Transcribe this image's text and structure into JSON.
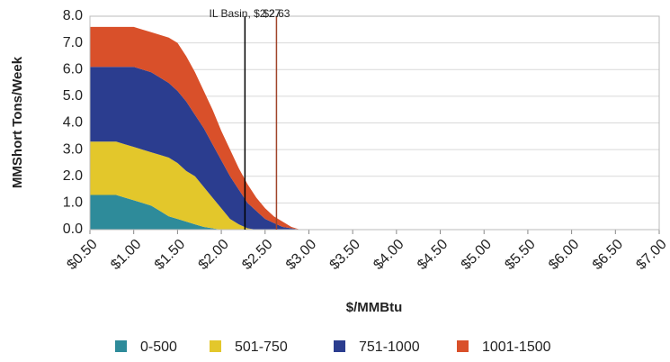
{
  "chart_data": {
    "type": "stacked_area",
    "y_label": "MMShort Tons/Week",
    "x_label": "$/MMBtu",
    "x": [
      0.5,
      0.6,
      0.7,
      0.8,
      0.9,
      1.0,
      1.1,
      1.2,
      1.3,
      1.4,
      1.5,
      1.6,
      1.7,
      1.8,
      1.9,
      2.0,
      2.1,
      2.2,
      2.3,
      2.4,
      2.5,
      2.6,
      2.7,
      2.8,
      2.9
    ],
    "series": [
      {
        "name": "0-500",
        "color": "#2e8b9a",
        "values": [
          1.3,
          1.3,
          1.3,
          1.3,
          1.2,
          1.1,
          1.0,
          0.9,
          0.7,
          0.5,
          0.4,
          0.3,
          0.2,
          0.1,
          0.05,
          0,
          0,
          0,
          0,
          0,
          0,
          0,
          0,
          0,
          0
        ]
      },
      {
        "name": "501-750",
        "color": "#e3c72b",
        "values": [
          2.0,
          2.0,
          2.0,
          2.0,
          2.0,
          2.0,
          2.0,
          2.0,
          2.1,
          2.2,
          2.1,
          1.9,
          1.8,
          1.5,
          1.15,
          0.8,
          0.4,
          0.2,
          0.05,
          0,
          0,
          0,
          0,
          0,
          0
        ]
      },
      {
        "name": "751-1000",
        "color": "#2b3d8f",
        "values": [
          2.8,
          2.8,
          2.8,
          2.8,
          2.9,
          3.0,
          3.0,
          3.0,
          2.9,
          2.8,
          2.7,
          2.6,
          2.3,
          2.2,
          2.0,
          1.8,
          1.6,
          1.3,
          0.95,
          0.7,
          0.4,
          0.25,
          0.1,
          0.05,
          0
        ]
      },
      {
        "name": "1001-1500",
        "color": "#d9502a",
        "values": [
          1.5,
          1.5,
          1.5,
          1.5,
          1.5,
          1.5,
          1.5,
          1.5,
          1.6,
          1.7,
          1.8,
          1.7,
          1.6,
          1.4,
          1.3,
          1.1,
          1.0,
          0.8,
          0.7,
          0.5,
          0.4,
          0.25,
          0.2,
          0.05,
          0
        ]
      }
    ],
    "xlim": [
      0.5,
      7.0
    ],
    "xticks": [
      {
        "value": 0.5,
        "label": "$0.50"
      },
      {
        "value": 1.0,
        "label": "$1.00"
      },
      {
        "value": 1.5,
        "label": "$1.50"
      },
      {
        "value": 2.0,
        "label": "$2.00"
      },
      {
        "value": 2.5,
        "label": "$2.50"
      },
      {
        "value": 3.0,
        "label": "$3.00"
      },
      {
        "value": 3.5,
        "label": "$3.50"
      },
      {
        "value": 4.0,
        "label": "$4.00"
      },
      {
        "value": 4.5,
        "label": "$4.50"
      },
      {
        "value": 5.0,
        "label": "$5.00"
      },
      {
        "value": 5.5,
        "label": "$5.50"
      },
      {
        "value": 6.0,
        "label": "$6.00"
      },
      {
        "value": 6.5,
        "label": "$6.50"
      },
      {
        "value": 7.0,
        "label": "$7.00"
      }
    ],
    "ylim": [
      0,
      8
    ],
    "yticks": [
      {
        "value": 0,
        "label": "0.0"
      },
      {
        "value": 1,
        "label": "1.0"
      },
      {
        "value": 2,
        "label": "2.0"
      },
      {
        "value": 3,
        "label": "3.0"
      },
      {
        "value": 4,
        "label": "4.0"
      },
      {
        "value": 5,
        "label": "5.0"
      },
      {
        "value": 6,
        "label": "6.0"
      },
      {
        "value": 7,
        "label": "7.0"
      },
      {
        "value": 8,
        "label": "8.0"
      }
    ],
    "grid": true,
    "annotations": [
      {
        "x": 2.27,
        "label": "IL Basin, $2.27",
        "color": "#000000"
      },
      {
        "x": 2.63,
        "label": "$2.63",
        "color": "#a0442a"
      }
    ]
  }
}
